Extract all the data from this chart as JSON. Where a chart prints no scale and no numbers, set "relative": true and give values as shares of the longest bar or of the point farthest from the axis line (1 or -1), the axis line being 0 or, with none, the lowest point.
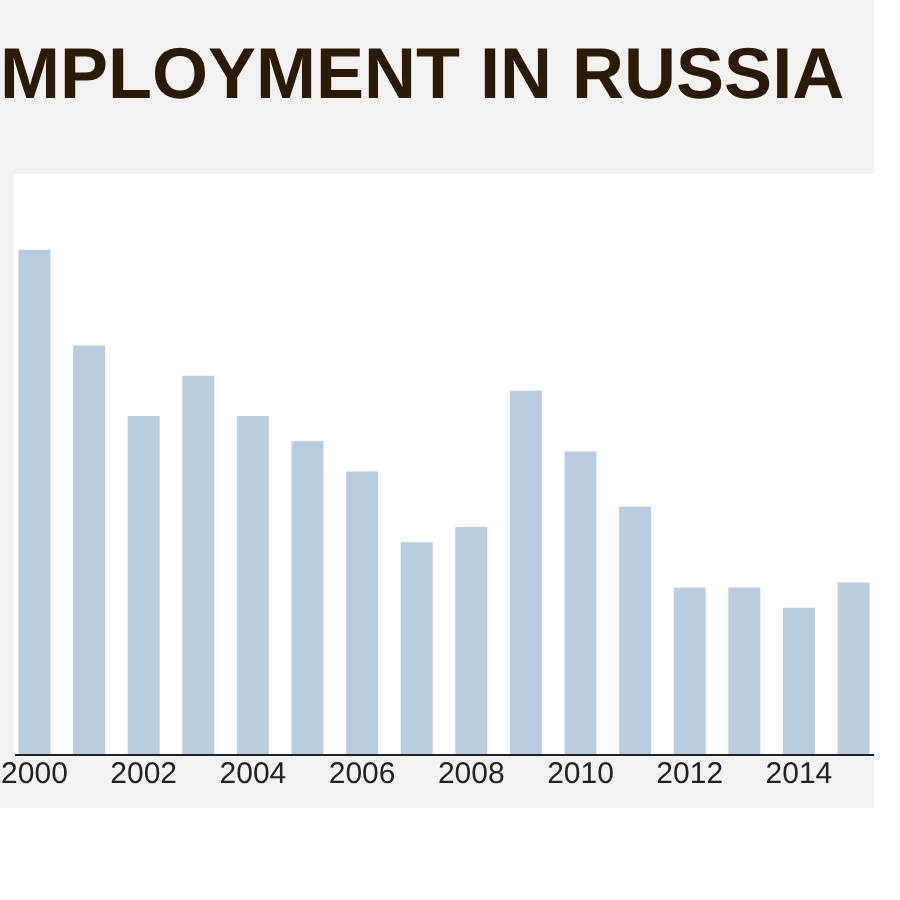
{
  "chart_data": {
    "type": "bar",
    "title": "MPLOYMENT IN RUSSIA",
    "categories": [
      "2000",
      null,
      "2002",
      null,
      "2004",
      null,
      "2006",
      null,
      "2008",
      null,
      "2010",
      null,
      "2012",
      null,
      "2014",
      null
    ],
    "relative": true,
    "color": "#b9cde0",
    "values": [
      1,
      0.81,
      0.67,
      0.75,
      0.67,
      0.62,
      0.56,
      0.42,
      0.45,
      0.72,
      0.6,
      0.49,
      0.33,
      0.33,
      0.29,
      0.34
    ]
  }
}
